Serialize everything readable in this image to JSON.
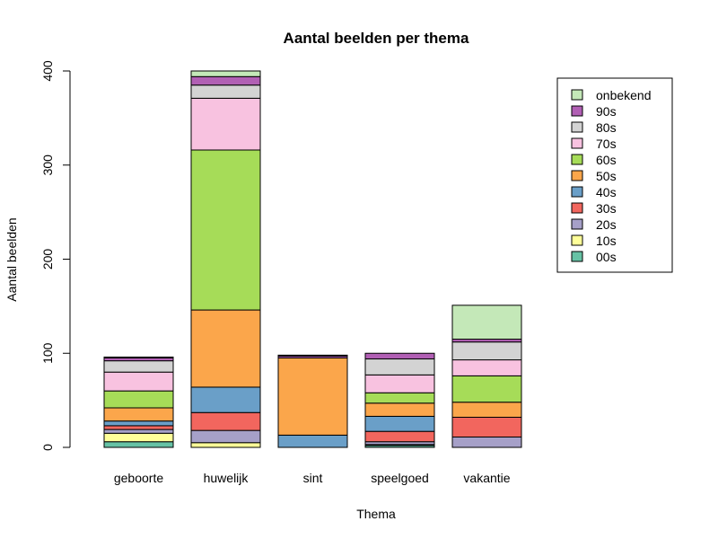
{
  "chart_data": {
    "type": "bar",
    "stacked": true,
    "title": "Aantal beelden per thema",
    "xlabel": "Thema",
    "ylabel": "Aantal beelden",
    "ylim": [
      0,
      400
    ],
    "yticks": [
      "0",
      "100",
      "200",
      "300",
      "400"
    ],
    "grid": false,
    "legend_position": "top-right",
    "categories": [
      "geboorte",
      "huwelijk",
      "sint",
      "speelgoed",
      "vakantie"
    ],
    "series": [
      {
        "name": "00s",
        "color": "#66c2a5",
        "values": [
          6,
          0,
          0,
          2,
          0
        ]
      },
      {
        "name": "10s",
        "color": "#ffff99",
        "values": [
          9,
          5,
          0,
          1,
          0
        ]
      },
      {
        "name": "20s",
        "color": "#a6a0c8",
        "values": [
          4,
          13,
          0,
          3,
          11
        ]
      },
      {
        "name": "30s",
        "color": "#f2665e",
        "values": [
          4,
          19,
          0,
          11,
          21
        ]
      },
      {
        "name": "40s",
        "color": "#6a9fc8",
        "values": [
          5,
          27,
          13,
          16,
          0
        ]
      },
      {
        "name": "50s",
        "color": "#fba64b",
        "values": [
          14,
          82,
          82,
          14,
          16
        ]
      },
      {
        "name": "60s",
        "color": "#a6dc58",
        "values": [
          18,
          170,
          0,
          11,
          28
        ]
      },
      {
        "name": "70s",
        "color": "#f8c2e0",
        "values": [
          20,
          55,
          0,
          19,
          17
        ]
      },
      {
        "name": "80s",
        "color": "#d3d3d3",
        "values": [
          12,
          14,
          0,
          17,
          19
        ]
      },
      {
        "name": "90s",
        "color": "#b15fb4",
        "values": [
          3,
          9,
          2,
          6,
          3
        ]
      },
      {
        "name": "onbekend",
        "color": "#c4e8b8",
        "values": [
          1,
          6,
          1,
          0,
          36
        ]
      }
    ]
  }
}
